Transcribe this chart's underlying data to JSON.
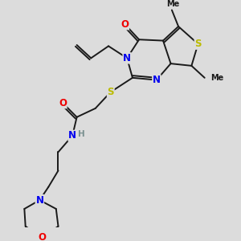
{
  "background_color": "#dcdcdc",
  "atom_colors": {
    "N": "#0000ee",
    "O": "#ee0000",
    "S": "#bbbb00",
    "C": "#000000",
    "H": "#7a9090"
  },
  "bond_color": "#1a1a1a",
  "bond_lw": 1.4
}
